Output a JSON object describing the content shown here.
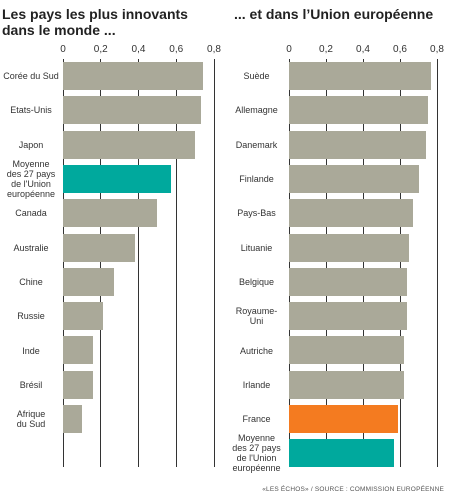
{
  "chart_data": [
    {
      "type": "barh",
      "title": "Les pays les plus innovants dans le monde ...",
      "categories": [
        "Corée du Sud",
        "Etats-Unis",
        "Japon",
        "Moyenne\ndes 27 pays\nde l'Union\neuropéenne",
        "Canada",
        "Australie",
        "Chine",
        "Russie",
        "Inde",
        "Brésil",
        "Afrique\ndu Sud"
      ],
      "values": [
        0.74,
        0.73,
        0.7,
        0.57,
        0.5,
        0.38,
        0.27,
        0.21,
        0.16,
        0.16,
        0.1
      ],
      "colors": [
        "#aaa999",
        "#aaa999",
        "#aaa999",
        "#00a99d",
        "#aaa999",
        "#aaa999",
        "#aaa999",
        "#aaa999",
        "#aaa999",
        "#aaa999",
        "#aaa999"
      ],
      "xlim": [
        0,
        0.8
      ],
      "xticks": [
        0,
        {
          "value": 0.2,
          "label": "0,2"
        },
        {
          "value": 0.4,
          "label": "0,4"
        },
        {
          "value": 0.6,
          "label": "0,6"
        },
        {
          "value": 0.8,
          "label": "0,8"
        }
      ],
      "grid": true
    },
    {
      "type": "barh",
      "title": "... et dans l’Union européenne",
      "categories": [
        "Suède",
        "Allemagne",
        "Danemark",
        "Finlande",
        "Pays-Bas",
        "Lituanie",
        "Belgique",
        "Royaume-\nUni",
        "Autriche",
        "Irlande",
        "France",
        "Moyenne\ndes 27 pays\nde l'Union\neuropéenne"
      ],
      "values": [
        0.77,
        0.75,
        0.74,
        0.7,
        0.67,
        0.65,
        0.64,
        0.64,
        0.62,
        0.62,
        0.59,
        0.57
      ],
      "colors": [
        "#aaa999",
        "#aaa999",
        "#aaa999",
        "#aaa999",
        "#aaa999",
        "#aaa999",
        "#aaa999",
        "#aaa999",
        "#aaa999",
        "#aaa999",
        "#f47b20",
        "#00a99d"
      ],
      "xlim": [
        0,
        0.8
      ],
      "xticks": [
        0,
        {
          "value": 0.2,
          "label": "0,2"
        },
        {
          "value": 0.4,
          "label": "0,4"
        },
        {
          "value": 0.6,
          "label": "0,6"
        },
        {
          "value": 0.8,
          "label": "0,8"
        }
      ],
      "grid": true
    }
  ],
  "source": "«LES ÉCHOS» / SOURCE : COMMISSION EUROPÉENNE"
}
